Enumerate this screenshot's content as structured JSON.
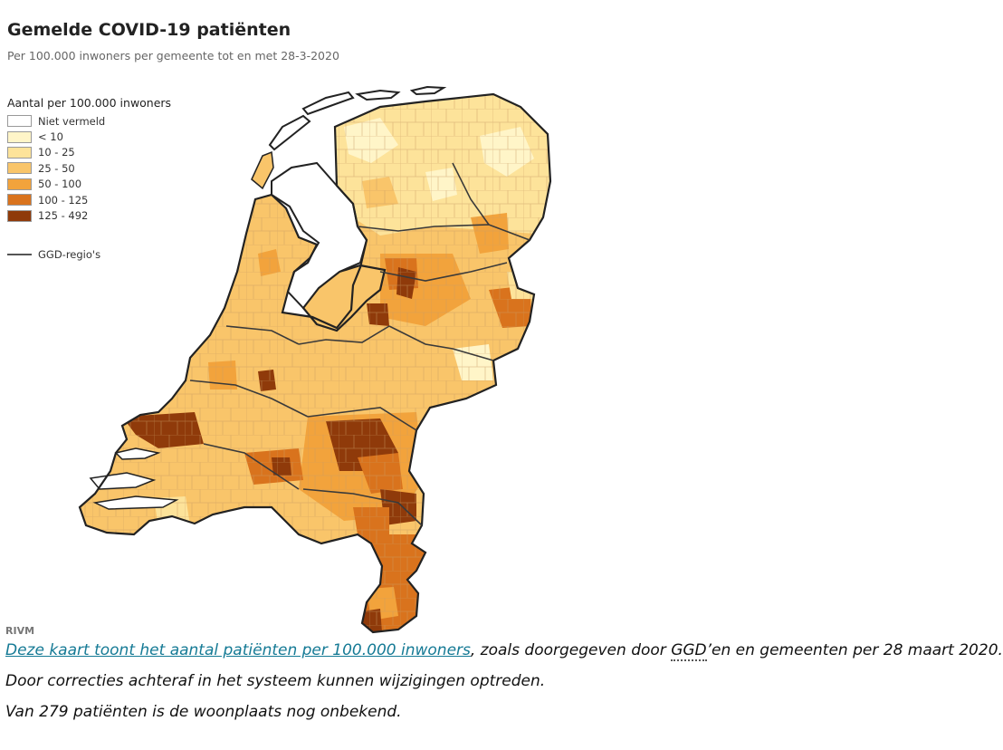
{
  "header": {
    "title": "Gemelde COVID-19 patiënten",
    "subtitle": "Per 100.000 inwoners per gemeente tot en met 28-3-2020"
  },
  "legend": {
    "title": "Aantal per 100.000 inwoners",
    "items": [
      {
        "label": "Niet vermeld",
        "color": "#ffffff"
      },
      {
        "label": "< 10",
        "color": "#fff5c8"
      },
      {
        "label": "10 - 25",
        "color": "#fde39a"
      },
      {
        "label": "25 - 50",
        "color": "#f9c56a"
      },
      {
        "label": "50 - 100",
        "color": "#f2a33c"
      },
      {
        "label": "100 - 125",
        "color": "#d9731d"
      },
      {
        "label": "125 - 492",
        "color": "#8f3a0a"
      }
    ],
    "line_label": "GGD-regio's"
  },
  "source": "RIVM",
  "caption": {
    "link_text": "Deze kaart toont het aantal patiënten per 100.000 inwoners",
    "line1_mid": ", zoals doorgegeven door ",
    "abbr": "GGD",
    "line1_end": "’en en gemeenten per 28 maart 2020.",
    "line2": "Door correcties achteraf in het systeem kunnen wijzigingen optreden.",
    "line3": "Van 279 patiënten is de woonplaats nog onbekend."
  }
}
